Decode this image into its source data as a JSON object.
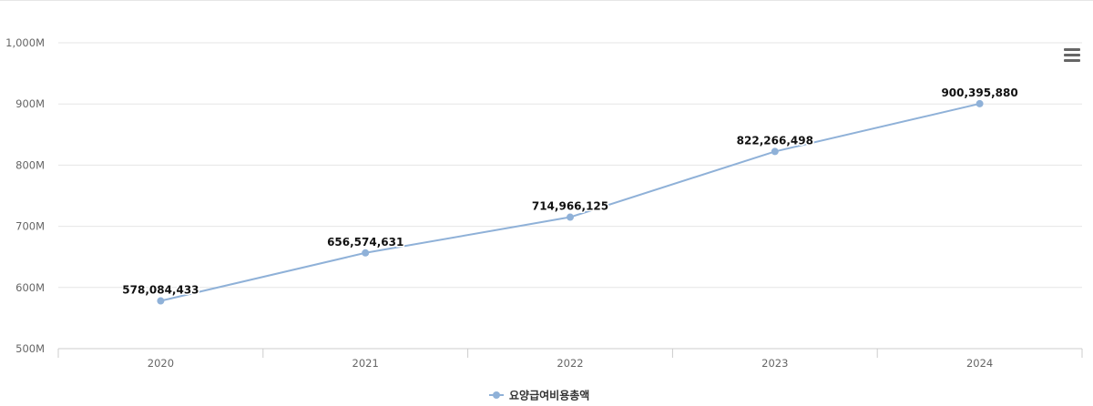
{
  "chart_data": {
    "type": "line",
    "categories": [
      "2020",
      "2021",
      "2022",
      "2023",
      "2024"
    ],
    "series": [
      {
        "name": "요양급여비용총액",
        "values": [
          578084433,
          656574631,
          714966125,
          822266498,
          900395880
        ],
        "labels": [
          "578,084,433",
          "656,574,631",
          "714,966,125",
          "822,266,498",
          "900,395,880"
        ],
        "color": "#8fb1d8"
      }
    ],
    "ylim": [
      500000000,
      1000000000
    ],
    "yticks": [
      500000000,
      600000000,
      700000000,
      800000000,
      900000000,
      1000000000
    ],
    "ytick_labels": [
      "500M",
      "600M",
      "700M",
      "800M",
      "900M",
      "1,000M"
    ],
    "grid": true,
    "legend_position": "bottom-center",
    "title": "",
    "xlabel": "",
    "ylabel": ""
  },
  "colors": {
    "series": "#8fb1d8",
    "grid": "#e6e6e6",
    "axis": "#cccccc",
    "tick_text": "#666666",
    "label_text": "#111111"
  },
  "toolbar": {
    "menu_icon": "hamburger-menu-icon"
  }
}
